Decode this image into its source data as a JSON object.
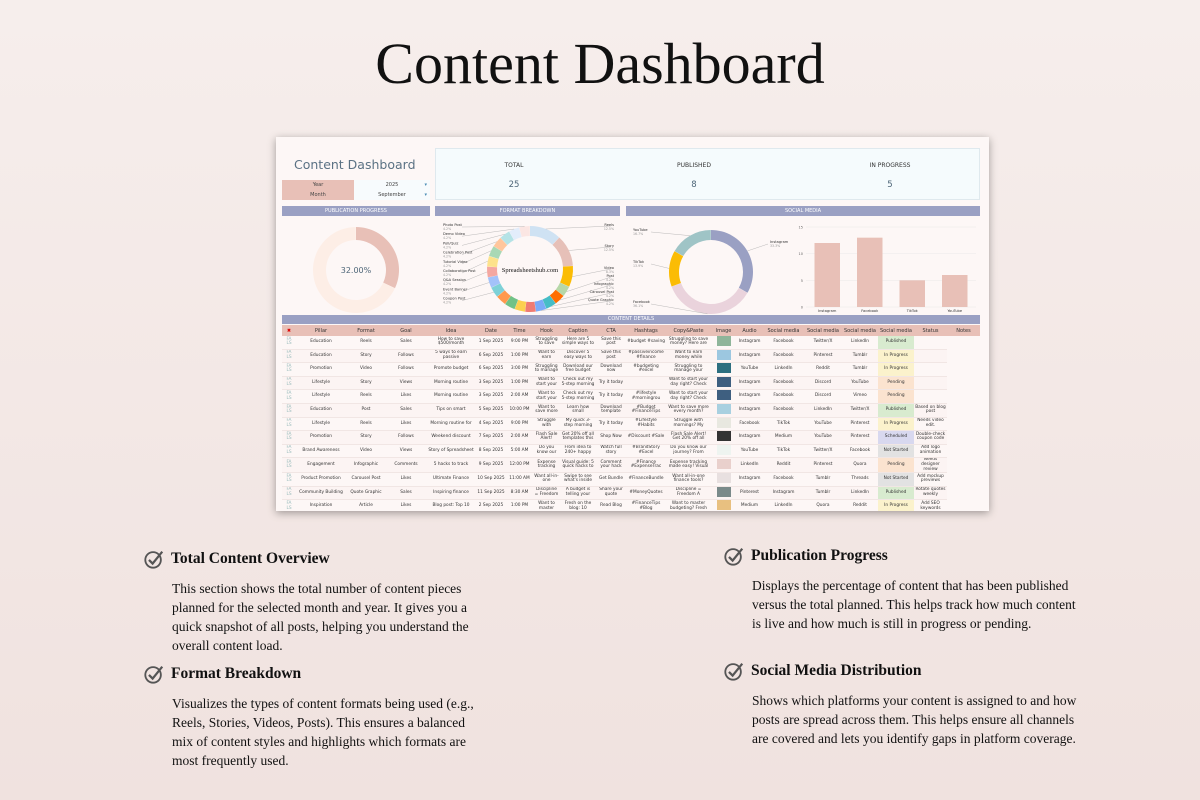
{
  "page_title": "Content Dashboard",
  "dashboard": {
    "title": "Content Dashboard",
    "year_label": "Year",
    "year_value": "2025",
    "month_label": "Month",
    "month_value": "September",
    "kpis": [
      {
        "label": "TOTAL",
        "value": "25"
      },
      {
        "label": "PUBLISHED",
        "value": "8"
      },
      {
        "label": "IN PROGRESS",
        "value": "5"
      }
    ],
    "sections": {
      "publication": "PUBLICATION PROGRESS",
      "format": "FORMAT BREAKDOWN",
      "social": "SOCIAL MEDIA",
      "details": "CONTENT DETAILS"
    },
    "watermark": "Spreadsheetshub.com",
    "colors": {
      "header": "#9aa0c3",
      "accent": "#e8c0b7",
      "published": "#d8ebcf",
      "in_progress": "#fbf2cc",
      "pending": "#fbe3cf",
      "scheduled": "#d8d8ef",
      "not_started": "#e2e2e2"
    }
  },
  "chart_data": [
    {
      "type": "pie",
      "title": "PUBLICATION PROGRESS",
      "center_label": "32.00%",
      "slices": [
        {
          "name": "Published",
          "value": 32,
          "color": "#e8c0b7"
        },
        {
          "name": "Remaining",
          "value": 68,
          "color": "#fdeee6"
        }
      ]
    },
    {
      "type": "pie",
      "title": "FORMAT BREAKDOWN",
      "slices": [
        {
          "name": "Reels",
          "value": 12.5,
          "label": "12.5%",
          "color": "#cfe2f3"
        },
        {
          "name": "Story",
          "value": 12.5,
          "label": "12.5%",
          "color": "#e6c0b8"
        },
        {
          "name": "Video",
          "value": 8.3,
          "label": "8.3%",
          "color": "#fbbc04"
        },
        {
          "name": "Post",
          "value": 4.2,
          "label": "4.2%",
          "color": "#b6d7a8"
        },
        {
          "name": "Infographic",
          "value": 4.2,
          "label": "4.2%",
          "color": "#ff6d01"
        },
        {
          "name": "Carousel Post",
          "value": 4.2,
          "label": "4.2%",
          "color": "#46bdc6"
        },
        {
          "name": "Quote Graphic",
          "value": 4.2,
          "label": "4.2%",
          "color": "#7baaf7"
        },
        {
          "name": "",
          "value": 4.2,
          "color": "#f07b72"
        },
        {
          "name": "",
          "value": 4.2,
          "color": "#fcd04f"
        },
        {
          "name": "",
          "value": 4.2,
          "color": "#71c287"
        },
        {
          "name": "",
          "value": 4.2,
          "color": "#ff994d"
        },
        {
          "name": "Coupon Post",
          "value": 4.2,
          "label": "4.2%",
          "color": "#7ed1d7"
        },
        {
          "name": "Event Banner",
          "value": 4.2,
          "label": "4.2%",
          "color": "#a3c2fa"
        },
        {
          "name": "Q&A Session",
          "value": 4.2,
          "label": "4.2%",
          "color": "#f4a7a1"
        },
        {
          "name": "Collaboration Post",
          "value": 4.2,
          "label": "4.2%",
          "color": "#fde28b"
        },
        {
          "name": "Tutorial Video",
          "value": 4.2,
          "label": "4.2%",
          "color": "#a8d8b5"
        },
        {
          "name": "Celebration Post",
          "value": 4.2,
          "label": "4.2%",
          "color": "#ffc69c"
        },
        {
          "name": "Poll/Quiz",
          "value": 4.2,
          "label": "4.2%",
          "color": "#b5e3e6"
        },
        {
          "name": "Demo Video",
          "value": 4.2,
          "label": "4.2%",
          "color": "#e3edfb"
        },
        {
          "name": "Photo Post",
          "value": 4.2,
          "label": "4.2%",
          "color": "#fbe6e3"
        }
      ]
    },
    {
      "type": "pie",
      "title": "SOCIAL MEDIA",
      "slices": [
        {
          "name": "Instagram",
          "value": 33.3,
          "label": "33.3%",
          "color": "#9aa0c3"
        },
        {
          "name": "Facebook",
          "value": 36.1,
          "label": "36.1%",
          "color": "#ead3dc"
        },
        {
          "name": "TikTok",
          "value": 13.9,
          "label": "13.9%",
          "color": "#fbbc04"
        },
        {
          "name": "YouTube",
          "value": 16.7,
          "label": "16.7%",
          "color": "#9fc4c6"
        }
      ]
    },
    {
      "type": "bar",
      "categories": [
        "Instagram",
        "Facebook",
        "TikTok",
        "YouTube"
      ],
      "values": [
        12,
        13,
        5,
        6
      ],
      "ylim": [
        0,
        15
      ],
      "yticks": [
        "0",
        "5",
        "10",
        "15"
      ],
      "grid": true,
      "color": "#e8c0b7"
    }
  ],
  "table": {
    "headers": [
      "",
      "Pillar",
      "Format",
      "Goal",
      "Idea",
      "Date",
      "Time",
      "Hook",
      "Caption",
      "CTA",
      "Hashtags",
      "Copy&Paste",
      "Image",
      "Audio",
      "Social media",
      "Social media",
      "Social media",
      "Social media",
      "Status",
      "Notes"
    ],
    "rows": [
      [
        "Education",
        "Reels",
        "Sales",
        "How to save $500/month",
        "1 Sep 2025",
        "9:00 PM",
        "Struggling to save",
        "Here are 5 simple ways to",
        "Save this post",
        "#budget #saving",
        "Struggling to save money? Here are",
        "",
        "Instagram",
        "Facebook",
        "Twitter/X",
        "LinkedIn",
        "Published",
        ""
      ],
      [
        "Education",
        "Story",
        "Follows",
        "5 ways to earn passive",
        "6 Sep 2025",
        "1:00 PM",
        "Want to earn",
        "Discover 5 easy ways to",
        "Save this post",
        "#passiveincome #finance",
        "Want to earn money while",
        "",
        "Instagram",
        "Facebook",
        "Pinterest",
        "Tumblr",
        "In Progress",
        ""
      ],
      [
        "Promotion",
        "Video",
        "Follows",
        "Promote budget",
        "6 Sep 2025",
        "3:00 PM",
        "Struggling to manage",
        "Download our free budget",
        "Download now",
        "#budgeting #excel",
        "Struggling to manage your",
        "",
        "YouTube",
        "LinkedIn",
        "Reddit",
        "Tumblr",
        "In Progress",
        ""
      ],
      [
        "Lifestyle",
        "Story",
        "Views",
        "Morning routine",
        "3 Sep 2025",
        "1:00 PM",
        "Want to start your",
        "Check out my 5-step morning",
        "Try it today",
        "",
        "Want to start your day right? Check",
        "",
        "Instagram",
        "Facebook",
        "Discord",
        "YouTube",
        "Pending",
        ""
      ],
      [
        "Lifestyle",
        "Reels",
        "Likes",
        "Morning routine",
        "3 Sep 2025",
        "2:00 AM",
        "Want to start your",
        "Check out my 5-step morning",
        "Try it today",
        "#lifestyle #morningrou",
        "Want to start your day right? Check",
        "",
        "Instagram",
        "Facebook",
        "Discord",
        "Vimeo",
        "Pending",
        ""
      ],
      [
        "Education",
        "Post",
        "Sales",
        "Tips on smart",
        "5 Sep 2025",
        "10:00 PM",
        "Want to save more",
        "Learn how small",
        "Download template",
        "#Budget #FinanceTips",
        "Want to save more every month?",
        "",
        "Instagram",
        "Facebook",
        "LinkedIn",
        "Twitter/X",
        "Published",
        "Based on blog post"
      ],
      [
        "Lifestyle",
        "Reels",
        "Likes",
        "Morning routine for",
        "4 Sep 2025",
        "9:00 PM",
        "Struggle with",
        "My quick 3-step morning",
        "Try it today",
        "#Lifestyle #Habits",
        "Struggle with mornings? My",
        "",
        "Facebook",
        "TikTok",
        "YouTube",
        "Pinterest",
        "In Progress",
        "Needs video edit."
      ],
      [
        "Promotion",
        "Story",
        "Follows",
        "Weekend discount",
        "7 Sep 2025",
        "2:00 AM",
        "Flash Sale Alert!",
        "Get 20% off all templates this",
        "Shop Now",
        "#Discount #Sale",
        "Flash Sale Alert! Get 20% off all",
        "",
        "Instagram",
        "Medium",
        "YouTube",
        "Pinterest",
        "Scheduled",
        "Double-check coupon code"
      ],
      [
        "Brand Awareness",
        "Video",
        "Views",
        "Story of Spreadsheet",
        "8 Sep 2025",
        "5:00 AM",
        "Do you know our",
        "From idea to 240+ happy",
        "Watch full story",
        "#BrandStory #Excel",
        "Do you know our journey? From",
        "",
        "YouTube",
        "TikTok",
        "Twitter/X",
        "Facebook",
        "Not Started",
        "Add logo animation"
      ],
      [
        "Engagement",
        "Infographic",
        "Comments",
        "5 hacks to track",
        "9 Sep 2025",
        "12:00 PM",
        "Expense tracking",
        "Visual guide: 5 quick hacks to",
        "Comment your hack",
        "#Finance #ExpenseTrac",
        "Expense tracking made easy! Visual",
        "",
        "LinkedIn",
        "Reddit",
        "Pinterest",
        "Quora",
        "Pending",
        "Needs designer review"
      ],
      [
        "Product Promotion",
        "Carousel Post",
        "Likes",
        "Ultimate Finance",
        "10 Sep 2025",
        "11:00 AM",
        "Want all-in-one",
        "Swipe to see what's inside",
        "Get Bundle",
        "#FinanceBundle",
        "Want all-in-one finance tools?",
        "",
        "Instagram",
        "Facebook",
        "Tumblr",
        "Threads",
        "Not Started",
        "Add mockup previews"
      ],
      [
        "Community Building",
        "Quote Graphic",
        "Sales",
        "Inspiring finance",
        "11 Sep 2025",
        "8:30 AM",
        "Discipline = Freedom",
        "A budget is telling your",
        "Share your quote",
        "#MoneyQuotes",
        "Discipline = Freedom A",
        "",
        "Pinterest",
        "Instagram",
        "Tumblr",
        "LinkedIn",
        "Published",
        "Rotate quotes weekly"
      ],
      [
        "Inspiration",
        "Article",
        "Likes",
        "Blog post: Top 10",
        "2 Sep 2025",
        "1:00 PM",
        "Want to master",
        "Fresh on the blog: 10",
        "Read Blog",
        "#FinanceTips #Blog",
        "Want to master budgeting? Fresh",
        "",
        "Medium",
        "LinkedIn",
        "Quora",
        "Reddit",
        "In Progress",
        "Add SEO keywords"
      ],
      [
        "Customer Stories",
        "Announcement Post",
        "Follows",
        "Client success case",
        "4 Sep 2025",
        "8:00 PM",
        "See how our clients",
        "John used our tracker to pay",
        "Try it yourself",
        "#SuccessStory",
        "See how our clients succeed",
        "",
        "Facebook",
        "Facebook",
        "Instagram",
        "TikTok",
        "Published",
        "Collect more testimonials"
      ],
      [
        "Thought Leadership",
        "Live Stream",
        "Views",
        "Q&A session on Excel",
        "1 Sep 2025",
        "6:40 AM",
        "Ask me anything",
        "Join our live Q&A session",
        "Join Live",
        "#ExcelTips #GoogleShee",
        "Ask me anything on Excel! Join our",
        "",
        "YouTube",
        "Twitter/X",
        "Pinterest",
        "Reddit",
        "Published",
        "Prepare Q&A questions"
      ]
    ]
  },
  "features": [
    {
      "title": "Total Content Overview",
      "text": "This section shows the total number of content pieces planned for the selected month and year. It gives you a quick snapshot of all posts, helping you understand the overall content load."
    },
    {
      "title": "Format Breakdown",
      "text": "Visualizes the types of content formats being used (e.g., Reels, Stories, Videos, Posts). This ensures a balanced mix of content styles and highlights which formats are most frequently used."
    },
    {
      "title": "Publication Progress",
      "text": "Displays the percentage of content that has been published versus the total planned. This helps track how much content is live and how much is still in progress or pending."
    },
    {
      "title": "Social Media Distribution",
      "text": "Shows which platforms your content is assigned to and how posts are spread across them. This helps ensure all channels are covered and lets you identify gaps in platform coverage."
    }
  ]
}
